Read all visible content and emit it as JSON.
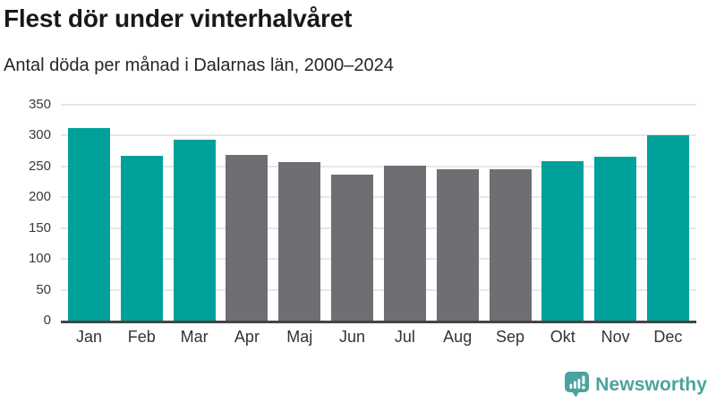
{
  "header": {
    "title": "Flest dör under vinterhalvåret",
    "subtitle": "Antal döda per månad i Dalarnas län, 2000–2024"
  },
  "chart_data": {
    "type": "bar",
    "title": "Flest dör under vinterhalvåret",
    "subtitle": "Antal döda per månad i Dalarnas län, 2000–2024",
    "categories": [
      "Jan",
      "Feb",
      "Mar",
      "Apr",
      "Maj",
      "Jun",
      "Jul",
      "Aug",
      "Sep",
      "Okt",
      "Nov",
      "Dec"
    ],
    "values": [
      313,
      268,
      294,
      269,
      257,
      237,
      252,
      245,
      246,
      259,
      266,
      300
    ],
    "bar_seasons": [
      "winter",
      "winter",
      "winter",
      "summer",
      "summer",
      "summer",
      "summer",
      "summer",
      "summer",
      "winter",
      "winter",
      "winter"
    ],
    "series_colors": {
      "winter": "#00a19a",
      "summer": "#6e6e73"
    },
    "xlabel": "",
    "ylabel": "",
    "ylim": [
      0,
      350
    ],
    "yticks": [
      0,
      50,
      100,
      150,
      200,
      250,
      300,
      350
    ],
    "grid": true,
    "legend": false
  },
  "colors": {
    "winter_bar": "#00a19a",
    "summer_bar": "#6e6e73",
    "gridline": "#e7e7e7",
    "axis_line": "#454545",
    "brand": "#4ba39d",
    "title_text": "#191919"
  },
  "footer": {
    "brand": "Newsworthy"
  }
}
